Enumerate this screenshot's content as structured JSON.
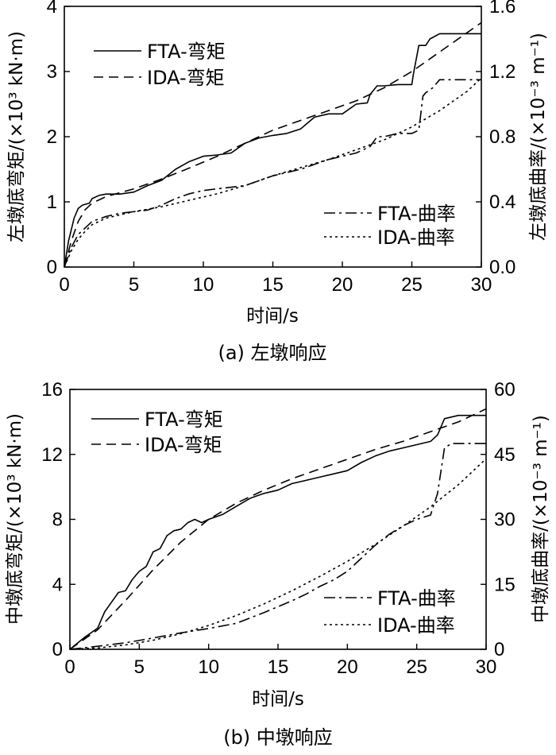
{
  "chart_data": [
    {
      "type": "line",
      "caption": "(a) 左墩响应",
      "xlabel": "时间/s",
      "ylabel_left": "左墩底弯矩/(×10³ kN·m)",
      "ylabel_right": "左墩底曲率/(×10⁻³ m⁻¹)",
      "xlim": [
        0,
        30
      ],
      "ylim_left": [
        0,
        4
      ],
      "ylim_right": [
        0,
        1.6
      ],
      "x_ticks": [
        0,
        5,
        10,
        15,
        20,
        25,
        30
      ],
      "y_left_ticks": [
        0,
        1,
        2,
        3,
        4
      ],
      "y_right_ticks": [
        "0.0",
        "0.4",
        "0.8",
        "1.2",
        "1.6"
      ],
      "legend_upper": [
        "FTA-弯矩",
        "IDA-弯矩"
      ],
      "legend_lower": [
        "FTA-曲率",
        "IDA-曲率"
      ],
      "series": [
        {
          "name": "FTA-弯矩",
          "axis": "left",
          "style": "solid",
          "x": [
            0,
            0.3,
            0.7,
            1.0,
            1.3,
            1.8,
            2.0,
            2.5,
            3.0,
            4.0,
            5.0,
            6.0,
            7.0,
            8.0,
            9.0,
            10.0,
            11.0,
            12.0,
            13.0,
            14.0,
            15.0,
            16.0,
            17.0,
            18.0,
            19.0,
            20.0,
            21.0,
            21.8,
            22.0,
            22.5,
            23.0,
            24.0,
            25.0,
            25.1,
            25.5,
            26.0,
            26.3,
            27.0,
            28.0,
            30.0
          ],
          "y": [
            0,
            0.4,
            0.75,
            0.9,
            0.95,
            0.98,
            1.05,
            1.1,
            1.12,
            1.12,
            1.15,
            1.25,
            1.33,
            1.5,
            1.62,
            1.7,
            1.72,
            1.75,
            1.9,
            1.98,
            2.02,
            2.05,
            2.12,
            2.3,
            2.35,
            2.35,
            2.5,
            2.52,
            2.65,
            2.78,
            2.78,
            2.8,
            2.8,
            2.95,
            3.4,
            3.4,
            3.5,
            3.58,
            3.58,
            3.58
          ]
        },
        {
          "name": "IDA-弯矩",
          "axis": "left",
          "style": "dashed",
          "x": [
            0,
            0.5,
            1,
            1.5,
            2,
            3,
            4,
            5,
            7,
            9,
            11,
            13,
            15,
            17,
            19,
            21,
            23,
            25,
            27,
            29,
            30
          ],
          "y": [
            0,
            0.4,
            0.7,
            0.88,
            0.98,
            1.08,
            1.14,
            1.2,
            1.35,
            1.52,
            1.7,
            1.9,
            2.1,
            2.25,
            2.4,
            2.55,
            2.75,
            3.0,
            3.3,
            3.6,
            3.75
          ]
        },
        {
          "name": "FTA-曲率",
          "axis": "right",
          "style": "dashdot",
          "x": [
            0,
            0.5,
            1,
            1.5,
            2,
            3,
            4,
            5,
            6,
            7,
            8,
            9,
            10,
            11,
            12,
            13,
            14,
            15,
            16,
            17,
            18,
            19,
            20,
            21,
            22,
            22.5,
            23,
            24,
            25,
            25.5,
            25.8,
            26.0,
            26.5,
            27.0,
            28.0,
            30.0
          ],
          "y": [
            0,
            0.12,
            0.2,
            0.24,
            0.28,
            0.31,
            0.33,
            0.34,
            0.35,
            0.38,
            0.42,
            0.45,
            0.47,
            0.48,
            0.49,
            0.5,
            0.53,
            0.56,
            0.58,
            0.6,
            0.63,
            0.66,
            0.68,
            0.7,
            0.74,
            0.8,
            0.8,
            0.82,
            0.82,
            0.84,
            1.05,
            1.07,
            1.1,
            1.15,
            1.15,
            1.15
          ]
        },
        {
          "name": "IDA-曲率",
          "axis": "right",
          "style": "dotted",
          "x": [
            0,
            0.5,
            1,
            1.5,
            2,
            3,
            5,
            7,
            9,
            11,
            13,
            15,
            17,
            19,
            21,
            23,
            25,
            27,
            29,
            30
          ],
          "y": [
            0,
            0.1,
            0.17,
            0.22,
            0.26,
            0.3,
            0.34,
            0.37,
            0.41,
            0.45,
            0.5,
            0.56,
            0.61,
            0.66,
            0.72,
            0.78,
            0.86,
            0.96,
            1.08,
            1.16
          ]
        }
      ]
    },
    {
      "type": "line",
      "caption": "(b) 中墩响应",
      "xlabel": "时间/s",
      "ylabel_left": "中墩底弯矩/(×10³ kN·m)",
      "ylabel_right": "中墩底曲率/(×10⁻³ m⁻¹)",
      "xlim": [
        0,
        30
      ],
      "ylim_left": [
        0,
        16
      ],
      "ylim_right": [
        0,
        60
      ],
      "x_ticks": [
        0,
        5,
        10,
        15,
        20,
        25,
        30
      ],
      "y_left_ticks": [
        0,
        4,
        8,
        12,
        16
      ],
      "y_right_ticks": [
        "0",
        "15",
        "30",
        "45",
        "60"
      ],
      "legend_upper": [
        "FTA-弯矩",
        "IDA-弯矩"
      ],
      "legend_lower": [
        "FTA-曲率",
        "IDA-曲率"
      ],
      "series": [
        {
          "name": "FTA-弯矩",
          "axis": "left",
          "style": "solid",
          "x": [
            0,
            1,
            2,
            2.5,
            3,
            3.5,
            4,
            4.5,
            5,
            5.5,
            6,
            6.5,
            7,
            7.5,
            8,
            8.5,
            9,
            9.5,
            10,
            11,
            12,
            13,
            14,
            15,
            16,
            17,
            18,
            19,
            20,
            21,
            22,
            23,
            24,
            25,
            26,
            26.5,
            27,
            28,
            30
          ],
          "y": [
            0,
            0.7,
            1.3,
            2.3,
            2.9,
            3.5,
            3.6,
            4.3,
            4.8,
            5.1,
            6.0,
            6.2,
            7.0,
            7.3,
            7.4,
            7.8,
            8.0,
            7.8,
            8.0,
            8.3,
            8.8,
            9.3,
            9.6,
            9.8,
            10.2,
            10.4,
            10.6,
            10.8,
            11.0,
            11.5,
            11.9,
            12.2,
            12.4,
            12.6,
            12.8,
            13.2,
            14.2,
            14.4,
            14.4
          ]
        },
        {
          "name": "IDA-弯矩",
          "axis": "left",
          "style": "dashed",
          "x": [
            0,
            2,
            4,
            6,
            8,
            10,
            12,
            14,
            16,
            18,
            20,
            22,
            24,
            26,
            28,
            30
          ],
          "y": [
            0,
            1.2,
            3.0,
            4.9,
            6.6,
            8.0,
            9.0,
            9.8,
            10.5,
            11.1,
            11.7,
            12.3,
            12.8,
            13.4,
            14.0,
            14.8
          ]
        },
        {
          "name": "FTA-曲率",
          "axis": "right",
          "style": "dashdot",
          "x": [
            0,
            2,
            4,
            6,
            8,
            10,
            12,
            14,
            16,
            17,
            18,
            19,
            20,
            21,
            22,
            23,
            24,
            25,
            26,
            26.5,
            27,
            27.5,
            28,
            30
          ],
          "y": [
            0,
            0.7,
            1.5,
            2.6,
            3.8,
            4.8,
            6.0,
            8.5,
            11.2,
            12.7,
            14.5,
            16.0,
            18.0,
            21.0,
            24.0,
            26.5,
            28.5,
            30.0,
            31.0,
            36.0,
            46.5,
            47.5,
            47.5,
            47.5
          ]
        },
        {
          "name": "IDA-曲率",
          "axis": "right",
          "style": "dotted",
          "x": [
            0,
            2,
            4,
            6,
            8,
            10,
            12,
            14,
            16,
            18,
            20,
            22,
            24,
            26,
            28,
            30
          ],
          "y": [
            0,
            0.3,
            1.0,
            2.1,
            3.6,
            5.5,
            7.8,
            10.5,
            13.5,
            16.8,
            20.3,
            24.2,
            28.4,
            32.9,
            38.0,
            44.0
          ]
        }
      ]
    }
  ]
}
